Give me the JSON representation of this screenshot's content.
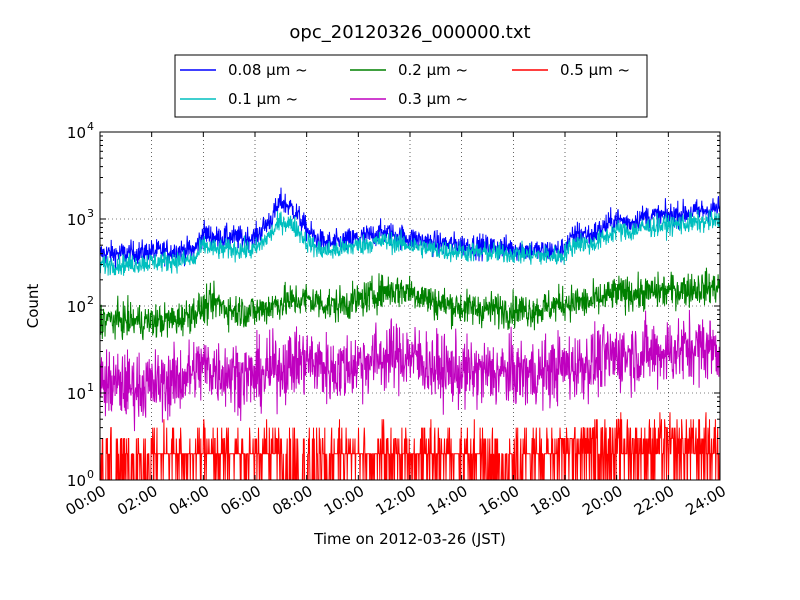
{
  "chart_data": {
    "type": "line",
    "title": "opc_20120326_000000.txt",
    "xlabel": "Time on 2012-03-26 (JST)",
    "ylabel": "Count",
    "y_scale": "log",
    "xlim": [
      "00:00",
      "24:00"
    ],
    "ylim": [
      1,
      10000
    ],
    "grid": true,
    "legend_position": "top-center",
    "x_ticks": [
      "00:00",
      "02:00",
      "04:00",
      "06:00",
      "08:00",
      "10:00",
      "12:00",
      "14:00",
      "16:00",
      "18:00",
      "20:00",
      "22:00",
      "24:00"
    ],
    "y_ticks": [
      {
        "value": 1,
        "base": "10",
        "exp": "0"
      },
      {
        "value": 10,
        "base": "10",
        "exp": "1"
      },
      {
        "value": 100,
        "base": "10",
        "exp": "2"
      },
      {
        "value": 1000,
        "base": "10",
        "exp": "3"
      },
      {
        "value": 10000,
        "base": "10",
        "exp": "4"
      }
    ],
    "series": [
      {
        "name": "0.08 μm ~",
        "color": "#0000ff",
        "noise": 0.07,
        "x": [
          "00:00",
          "01:00",
          "02:00",
          "03:00",
          "03:40",
          "04:00",
          "04:30",
          "05:00",
          "05:30",
          "06:00",
          "06:40",
          "07:00",
          "07:30",
          "08:00",
          "08:30",
          "09:00",
          "10:00",
          "11:00",
          "12:00",
          "13:00",
          "14:00",
          "15:00",
          "16:00",
          "17:00",
          "17:50",
          "18:30",
          "19:00",
          "19:30",
          "20:00",
          "20:30",
          "21:00",
          "22:00",
          "23:00",
          "24:00"
        ],
        "y": [
          400,
          400,
          420,
          430,
          440,
          700,
          600,
          620,
          600,
          610,
          1050,
          1600,
          1300,
          750,
          550,
          520,
          600,
          700,
          600,
          520,
          500,
          480,
          460,
          430,
          430,
          700,
          650,
          800,
          1000,
          900,
          1050,
          1100,
          1200,
          1350
        ]
      },
      {
        "name": "0.1 μm ~",
        "color": "#00bfbf",
        "noise": 0.06,
        "x": [
          "00:00",
          "01:00",
          "02:00",
          "03:00",
          "03:40",
          "04:00",
          "04:30",
          "05:00",
          "05:30",
          "06:00",
          "06:40",
          "07:00",
          "07:30",
          "08:00",
          "08:30",
          "09:00",
          "10:00",
          "11:00",
          "12:00",
          "13:00",
          "14:00",
          "15:00",
          "16:00",
          "17:00",
          "17:50",
          "18:30",
          "19:00",
          "19:30",
          "20:00",
          "20:30",
          "21:00",
          "22:00",
          "23:00",
          "24:00"
        ],
        "y": [
          300,
          300,
          320,
          330,
          340,
          500,
          440,
          450,
          440,
          440,
          700,
          950,
          850,
          550,
          440,
          430,
          500,
          560,
          500,
          440,
          420,
          410,
          400,
          380,
          370,
          550,
          500,
          600,
          750,
          700,
          800,
          850,
          900,
          950
        ]
      },
      {
        "name": "0.2 μm ~",
        "color": "#008000",
        "noise": 0.1,
        "x": [
          "00:00",
          "01:00",
          "02:00",
          "03:00",
          "04:00",
          "04:30",
          "05:00",
          "06:00",
          "07:00",
          "08:00",
          "09:00",
          "10:00",
          "11:00",
          "12:00",
          "13:00",
          "14:00",
          "16:00",
          "17:00",
          "18:00",
          "19:00",
          "20:00",
          "21:00",
          "22:00",
          "23:00",
          "24:00"
        ],
        "y": [
          70,
          68,
          66,
          70,
          95,
          110,
          90,
          85,
          110,
          120,
          100,
          115,
          150,
          150,
          110,
          95,
          90,
          90,
          110,
          110,
          140,
          140,
          150,
          160,
          165
        ]
      },
      {
        "name": "0.3 μm ~",
        "color": "#bf00bf",
        "noise": 0.2,
        "x": [
          "00:00",
          "01:00",
          "02:00",
          "03:00",
          "04:00",
          "05:00",
          "06:00",
          "07:00",
          "08:00",
          "09:00",
          "10:00",
          "11:00",
          "12:00",
          "13:00",
          "14:00",
          "16:00",
          "17:00",
          "18:00",
          "19:00",
          "20:00",
          "21:00",
          "22:00",
          "23:00",
          "24:00"
        ],
        "y": [
          13,
          12,
          12,
          14,
          20,
          17,
          15,
          20,
          24,
          18,
          22,
          26,
          27,
          19,
          17,
          17,
          17,
          20,
          22,
          27,
          28,
          30,
          33,
          33
        ]
      },
      {
        "name": "0.5 μm ~",
        "color": "#ff0000",
        "noise": 0,
        "x": [
          "00:00",
          "04:00",
          "08:00",
          "12:00",
          "16:00",
          "20:00",
          "24:00"
        ],
        "y": [
          1.5,
          1.8,
          1.6,
          1.8,
          1.6,
          2.2,
          2.4
        ]
      }
    ]
  }
}
